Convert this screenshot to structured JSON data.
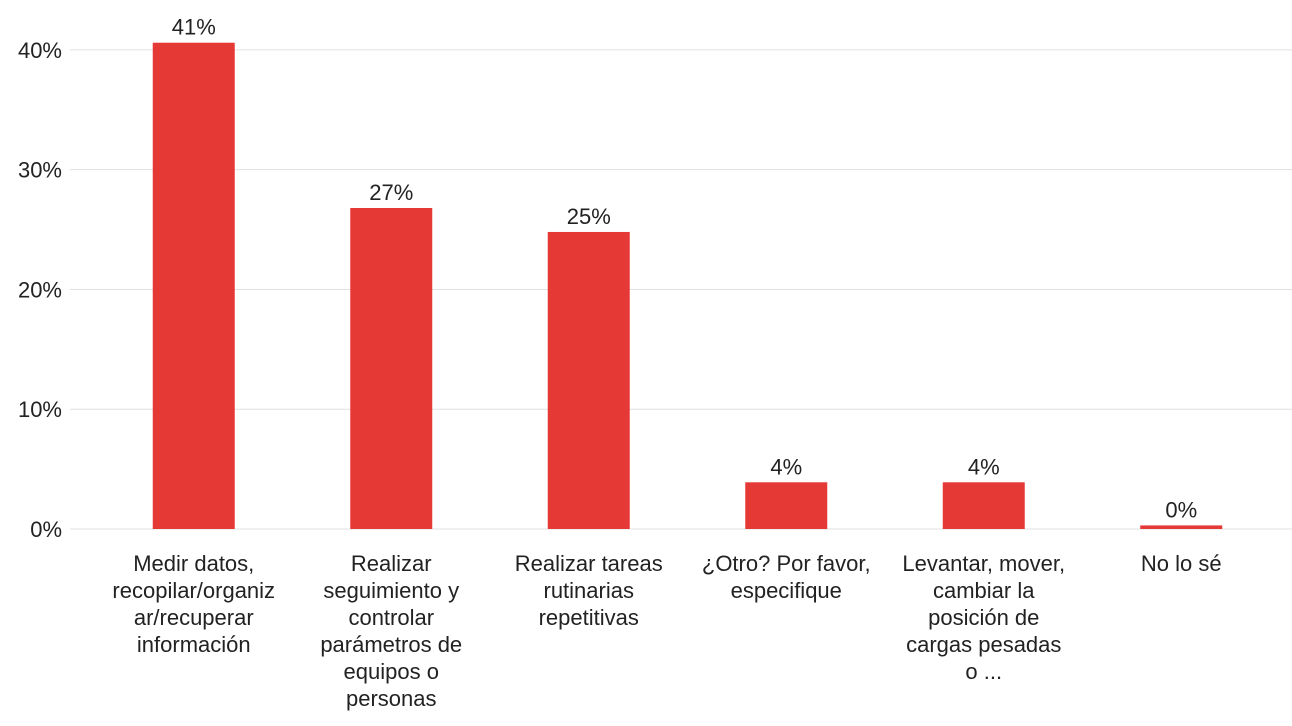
{
  "chart_data": {
    "type": "bar",
    "categories": [
      "Medir datos, recopilar/organizar/recuperar información",
      "Realizar seguimiento y controlar parámetros de equipos o personas",
      "Realizar tareas rutinarias repetitivas",
      "¿Otro? Por favor, especifique",
      "Levantar, mover, cambiar la posición de cargas pesadas o ...",
      "No lo sé"
    ],
    "values": [
      40.6,
      26.8,
      24.8,
      3.9,
      3.9,
      0.3
    ],
    "value_labels": [
      "41%",
      "27%",
      "25%",
      "4%",
      "4%",
      "0%"
    ],
    "color": "#e53935",
    "ylim": [
      0,
      44
    ],
    "yticks": [
      {
        "value": 0,
        "label": "0%"
      },
      {
        "value": 10,
        "label": "10%"
      },
      {
        "value": 20,
        "label": "20%"
      },
      {
        "value": 30,
        "label": "30%"
      },
      {
        "value": 40,
        "label": "40%"
      }
    ],
    "grid": true
  }
}
